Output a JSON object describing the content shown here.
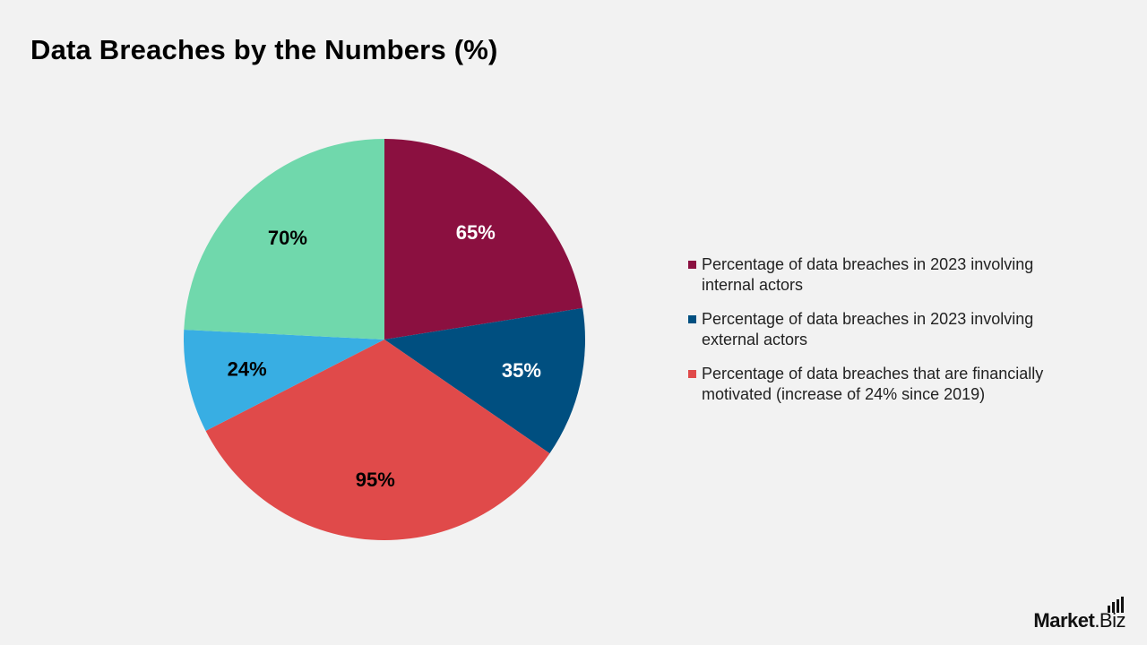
{
  "title": "Data Breaches by the Numbers (%)",
  "brand": {
    "main": "Market",
    "suffix": ".Biz"
  },
  "chart_data": {
    "type": "pie",
    "title": "Data Breaches by the Numbers (%)",
    "slices": [
      {
        "label": "Percentage of data breaches in 2023 involving internal actors",
        "value": 65,
        "data_label": "65%",
        "color": "#8b1040",
        "label_color": "#ffffff",
        "in_legend": true
      },
      {
        "label": "Percentage of data breaches in 2023 involving external actors",
        "value": 35,
        "data_label": "35%",
        "color": "#004f80",
        "label_color": "#ffffff",
        "in_legend": true
      },
      {
        "label": "Percentage of data breaches that are financially motivated (increase of 24% since 2019)",
        "value": 95,
        "data_label": "95%",
        "color": "#e04a4a",
        "label_color": "#000000",
        "in_legend": true
      },
      {
        "label": "",
        "value": 24,
        "data_label": "24%",
        "color": "#38aee3",
        "label_color": "#000000",
        "in_legend": false
      },
      {
        "label": "",
        "value": 70,
        "data_label": "70%",
        "color": "#70d8ac",
        "label_color": "#000000",
        "in_legend": false
      }
    ],
    "legend_position": "right"
  }
}
